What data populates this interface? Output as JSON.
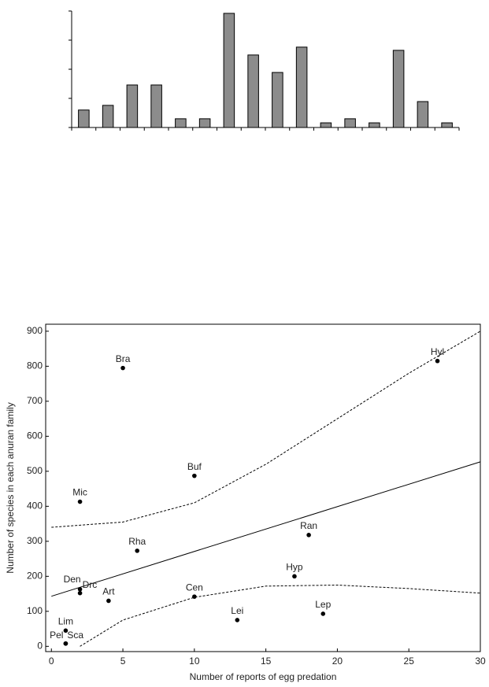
{
  "chart_data": [
    {
      "type": "bar",
      "categories": [
        null,
        null,
        null,
        null,
        null,
        null,
        null,
        null,
        null,
        null,
        null,
        null,
        null,
        null,
        null,
        null
      ],
      "values": [
        0.6,
        0.76,
        1.46,
        1.46,
        0.3,
        0.3,
        3.92,
        2.49,
        1.89,
        2.76,
        0.16,
        0.3,
        0.16,
        2.65,
        0.89,
        0.16
      ],
      "color": "#8c8c8c",
      "ylim": [
        0,
        4
      ],
      "yticks": [
        0,
        1,
        2,
        3,
        4
      ]
    },
    {
      "type": "scatter",
      "x_label": "Number of reports of egg predation",
      "y_label": "Number of species in each anuran family",
      "point_labels": [
        "Bra",
        "Hyl",
        "Buf",
        "Mic",
        "Ran",
        "Rha",
        "Hyp",
        "Den",
        "Drc",
        "Art",
        "Cen",
        "Lei",
        "Lep",
        "Lim",
        "Pel",
        "Sca"
      ],
      "x": [
        5,
        27,
        10,
        2,
        18,
        6,
        17,
        2,
        2,
        4,
        10,
        13,
        19,
        1,
        1,
        1
      ],
      "values": [
        795,
        815,
        487,
        413,
        318,
        273,
        200,
        163,
        152,
        130,
        142,
        75,
        93,
        45,
        8,
        8
      ],
      "color": "#000000",
      "fit": {
        "x": [
          0,
          30
        ],
        "values": [
          143,
          527
        ]
      },
      "upper_band": {
        "x": [
          0,
          5,
          10,
          15,
          20,
          25,
          30
        ],
        "values": [
          340,
          355,
          410,
          520,
          650,
          780,
          900
        ]
      },
      "lower_band": {
        "x": [
          2,
          5,
          10,
          15,
          20,
          25,
          30
        ],
        "values": [
          0,
          75,
          140,
          172,
          175,
          165,
          152
        ]
      },
      "xlim": [
        -0.4,
        30
      ],
      "xticks": [
        0,
        5,
        10,
        15,
        20,
        25,
        30
      ],
      "ylim": [
        -15,
        920
      ],
      "yticks": [
        0,
        100,
        200,
        300,
        400,
        500,
        600,
        700,
        800,
        900
      ]
    }
  ]
}
